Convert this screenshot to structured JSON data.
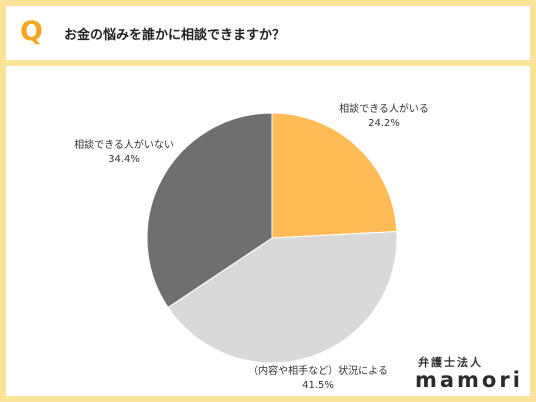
{
  "header": {
    "q_mark": "Q",
    "title": "お金の悩みを誰かに相談できますか？"
  },
  "chart_data": {
    "type": "pie",
    "title": "",
    "start": "12 o'clock",
    "direction": "clockwise",
    "slices": [
      {
        "label": "相談できる人がいる",
        "value": 24.2,
        "value_label": "24.2%",
        "color": "#ffbb55"
      },
      {
        "label": "（内容や相手など）状況による",
        "value": 41.5,
        "value_label": "41.5%",
        "color": "#d9d9d9"
      },
      {
        "label": "相談できる人がいない",
        "value": 34.4,
        "value_label": "34.4%",
        "color": "#6f6f6f"
      }
    ]
  },
  "brand": {
    "top": "弁護士法人",
    "logo": "mamori"
  }
}
